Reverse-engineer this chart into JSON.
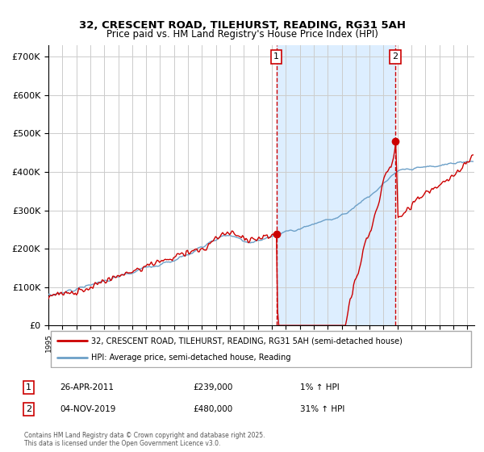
{
  "title1": "32, CRESCENT ROAD, TILEHURST, READING, RG31 5AH",
  "title2": "Price paid vs. HM Land Registry's House Price Index (HPI)",
  "ylabel_ticks": [
    "£0",
    "£100K",
    "£200K",
    "£300K",
    "£400K",
    "£500K",
    "£600K",
    "£700K"
  ],
  "ytick_vals": [
    0,
    100000,
    200000,
    300000,
    400000,
    500000,
    600000,
    700000
  ],
  "ylim": [
    0,
    730000
  ],
  "xlim_start": 1995.0,
  "xlim_end": 2025.5,
  "marker1_x": 2011.32,
  "marker1_y": 239000,
  "marker2_x": 2019.84,
  "marker2_y": 480000,
  "dashed_x1": 2011.32,
  "dashed_x2": 2019.84,
  "shade_x1": 2011.32,
  "shade_x2": 2019.84,
  "legend1_label": "32, CRESCENT ROAD, TILEHURST, READING, RG31 5AH (semi-detached house)",
  "legend2_label": "HPI: Average price, semi-detached house, Reading",
  "annotation1_box": "1",
  "annotation1_date": "26-APR-2011",
  "annotation1_price": "£239,000",
  "annotation1_hpi": "1% ↑ HPI",
  "annotation2_box": "2",
  "annotation2_date": "04-NOV-2019",
  "annotation2_price": "£480,000",
  "annotation2_hpi": "31% ↑ HPI",
  "footer": "Contains HM Land Registry data © Crown copyright and database right 2025.\nThis data is licensed under the Open Government Licence v3.0.",
  "hpi_color": "#6ca0c8",
  "price_color": "#cc0000",
  "shade_color": "#ddeeff",
  "marker_color": "#cc0000",
  "grid_color": "#cccccc",
  "dashed_color": "#cc0000"
}
